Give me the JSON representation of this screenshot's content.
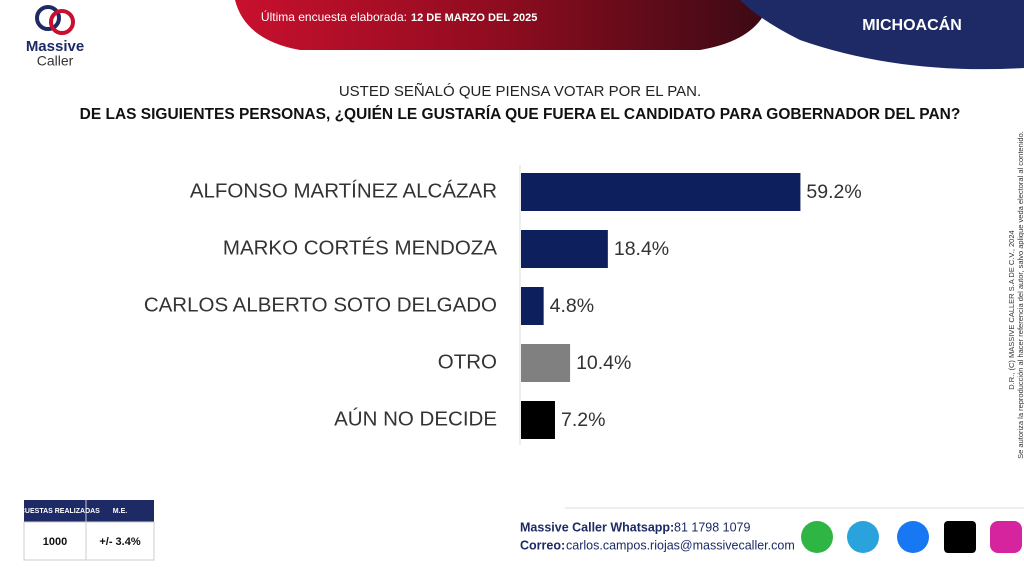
{
  "logo": {
    "name": "Massive",
    "name2": "Caller"
  },
  "header": {
    "prefix": "Última encuesta elaborada:",
    "date": "12 DE MARZO DEL 2025",
    "region": "MICHOACÁN"
  },
  "question": {
    "line1": "USTED SEÑALÓ QUE PIENSA VOTAR POR EL PAN.",
    "line2": "DE LAS SIGUIENTES PERSONAS,  ¿QUIÉN LE GUSTARÍA QUE FUERA EL CANDIDATO PARA GOBERNADOR DEL PAN?"
  },
  "chart_data": {
    "type": "bar",
    "orientation": "horizontal",
    "categories": [
      "ALFONSO MARTÍNEZ ALCÁZAR",
      "MARKO CORTÉS MENDOZA",
      "CARLOS ALBERTO SOTO DELGADO",
      "OTRO",
      "AÚN NO DECIDE"
    ],
    "values": [
      59.2,
      18.4,
      4.8,
      10.4,
      7.2
    ],
    "value_labels": [
      "59.2%",
      "18.4%",
      "4.8%",
      "10.4%",
      "7.2%"
    ],
    "colors": [
      "#0d1f5c",
      "#0d1f5c",
      "#0d1f5c",
      "#808080",
      "#000000"
    ]
  },
  "table": {
    "headers": [
      "ENCUESTAS REALIZADAS",
      "M.E."
    ],
    "rows": [
      [
        "1000",
        "+/- 3.4%"
      ]
    ]
  },
  "side_notes": [
    "D.R., (C) MASSIVE CALLER S.A DE C.V., 2024",
    "Se autoriza la reproducción al hacer referencia del autor, salvo aplique veda electoral al contenido."
  ],
  "footer": {
    "whatsapp_label": "Massive Caller Whatsapp:",
    "whatsapp": "81 1798 1079",
    "email_label": "Correo:",
    "email": "carlos.campos.riojas@massivecaller.com"
  }
}
